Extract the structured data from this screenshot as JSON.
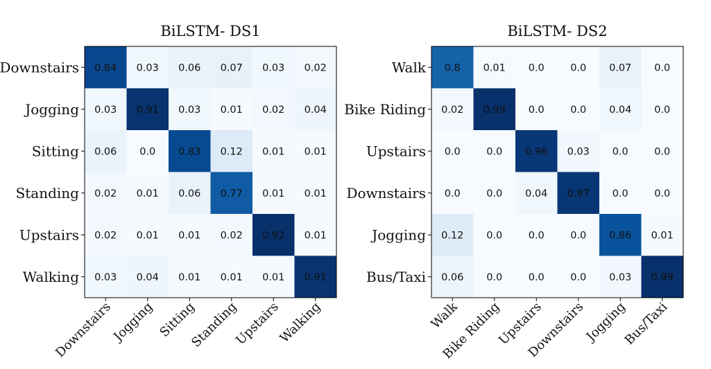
{
  "chart_data": [
    {
      "type": "heatmap",
      "title": "BiLSTM- DS1",
      "rows": [
        "Downstairs",
        "Jogging",
        "Sitting",
        "Standing",
        "Upstairs",
        "Walking"
      ],
      "cols": [
        "Downstairs",
        "Jogging",
        "Sitting",
        "Standing",
        "Upstairs",
        "Walking"
      ],
      "values": [
        [
          "0.84",
          "0.03",
          "0.06",
          "0.07",
          "0.03",
          "0.02"
        ],
        [
          "0.03",
          "0.91",
          "0.03",
          "0.01",
          "0.02",
          "0.04"
        ],
        [
          "0.06",
          "0.0",
          "0.83",
          "0.12",
          "0.01",
          "0.01"
        ],
        [
          "0.02",
          "0.01",
          "0.06",
          "0.77",
          "0.01",
          "0.01"
        ],
        [
          "0.02",
          "0.01",
          "0.01",
          "0.02",
          "0.92",
          "0.01"
        ],
        [
          "0.03",
          "0.04",
          "0.01",
          "0.01",
          "0.01",
          "0.91"
        ]
      ],
      "colormap": "Blues"
    },
    {
      "type": "heatmap",
      "title": "BiLSTM- DS2",
      "rows": [
        "Walk",
        "Bike Riding",
        "Upstairs",
        "Downstairs",
        "Jogging",
        "Bus/Taxi"
      ],
      "cols": [
        "Walk",
        "Bike Riding",
        "Upstairs",
        "Downstairs",
        "Jogging",
        "Bus/Taxi"
      ],
      "values": [
        [
          "0.8",
          "0.01",
          "0.0",
          "0.0",
          "0.07",
          "0.0"
        ],
        [
          "0.02",
          "0.99",
          "0.0",
          "0.0",
          "0.04",
          "0.0"
        ],
        [
          "0.0",
          "0.0",
          "0.96",
          "0.03",
          "0.0",
          "0.0"
        ],
        [
          "0.0",
          "0.0",
          "0.04",
          "0.97",
          "0.0",
          "0.0"
        ],
        [
          "0.12",
          "0.0",
          "0.0",
          "0.0",
          "0.86",
          "0.01"
        ],
        [
          "0.06",
          "0.0",
          "0.0",
          "0.0",
          "0.03",
          "0.99"
        ]
      ],
      "colormap": "Blues"
    }
  ]
}
